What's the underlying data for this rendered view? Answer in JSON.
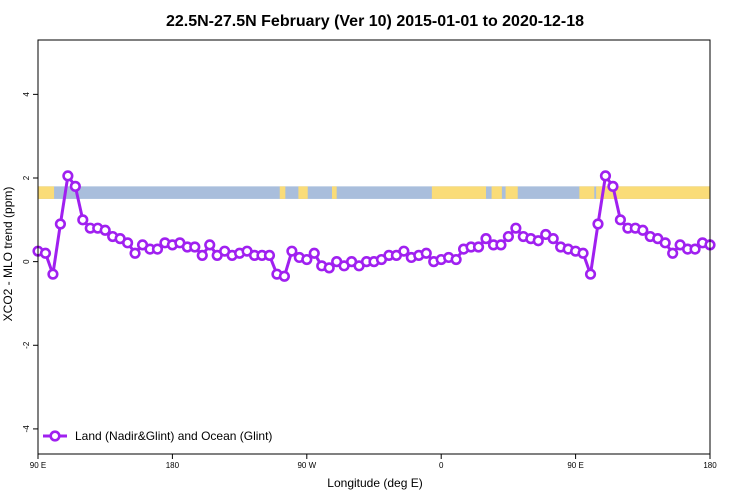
{
  "chart_data": {
    "type": "line",
    "title": "22.5N-27.5N February (Ver 10)   2015-01-01 to 2020-12-18",
    "xlabel": "Longitude (deg E)",
    "ylabel": "XCO2 - MLO trend (ppm)",
    "xlim": [
      90,
      450
    ],
    "ylim": [
      -4.6,
      5.3
    ],
    "xticks": [
      90,
      162,
      234,
      306,
      378,
      450
    ],
    "xtick_labels": [
      "90 E",
      "180",
      "90 W",
      "0",
      "90 E",
      "180"
    ],
    "yticks": [
      -4,
      -2,
      0,
      2,
      4
    ],
    "ytick_labels": [
      "-4",
      "-2",
      "0",
      "2",
      "4"
    ],
    "legend": {
      "position": "bottom-left",
      "label": "Land (Nadir&Glint) and Ocean (Glint)"
    },
    "land_ocean_strip": {
      "y_range": [
        1.5,
        1.8
      ],
      "ocean_color": "#a9bedc",
      "land_color": "#fadc78",
      "land_segments": [
        [
          90,
          98.6
        ],
        [
          219.5,
          222.5
        ],
        [
          229.5,
          234.5
        ],
        [
          247.5,
          250
        ],
        [
          301,
          330
        ],
        [
          333,
          338.5
        ],
        [
          340.5,
          347
        ],
        [
          380,
          388
        ],
        [
          389,
          450
        ]
      ]
    },
    "series": [
      {
        "color": "#a020f0",
        "x": [
          90,
          94,
          98,
          102,
          106,
          110,
          114,
          118,
          122,
          126,
          130,
          134,
          138,
          142,
          146,
          150,
          154,
          158,
          162,
          166,
          170,
          174,
          178,
          182,
          186,
          190,
          194,
          198,
          202,
          206,
          210,
          214,
          218,
          222,
          226,
          230,
          234,
          238,
          242,
          246,
          250,
          254,
          258,
          262,
          266,
          270,
          274,
          278,
          282,
          286,
          290,
          294,
          298,
          302,
          306,
          310,
          314,
          318,
          322,
          326,
          330,
          334,
          338,
          342,
          346,
          350,
          354,
          358,
          362,
          366,
          370,
          374,
          378,
          382,
          386,
          390,
          394,
          398,
          402,
          406,
          410,
          414,
          418,
          422,
          426,
          430,
          434,
          438,
          442,
          446,
          450
        ],
        "y": [
          0.25,
          0.2,
          -0.3,
          0.9,
          2.05,
          1.8,
          1.0,
          0.8,
          0.8,
          0.75,
          0.6,
          0.55,
          0.45,
          0.2,
          0.4,
          0.3,
          0.3,
          0.45,
          0.4,
          0.45,
          0.35,
          0.35,
          0.15,
          0.4,
          0.15,
          0.25,
          0.15,
          0.2,
          0.25,
          0.15,
          0.15,
          0.15,
          -0.3,
          -0.35,
          0.25,
          0.1,
          0.05,
          0.2,
          -0.1,
          -0.15,
          0.0,
          -0.1,
          0.0,
          -0.1,
          0.0,
          0.0,
          0.05,
          0.15,
          0.15,
          0.25,
          0.1,
          0.15,
          0.2,
          0.0,
          0.05,
          0.1,
          0.05,
          0.3,
          0.35,
          0.35,
          0.55,
          0.4,
          0.4,
          0.6,
          0.8,
          0.6,
          0.55,
          0.5,
          0.65,
          0.55,
          0.35,
          0.3,
          0.25,
          0.2,
          -0.3,
          0.9,
          2.05,
          1.8,
          1.0,
          0.8,
          0.8,
          0.75,
          0.6,
          0.55,
          0.45,
          0.2,
          0.4,
          0.3,
          0.3,
          0.45,
          0.4
        ]
      }
    ]
  }
}
